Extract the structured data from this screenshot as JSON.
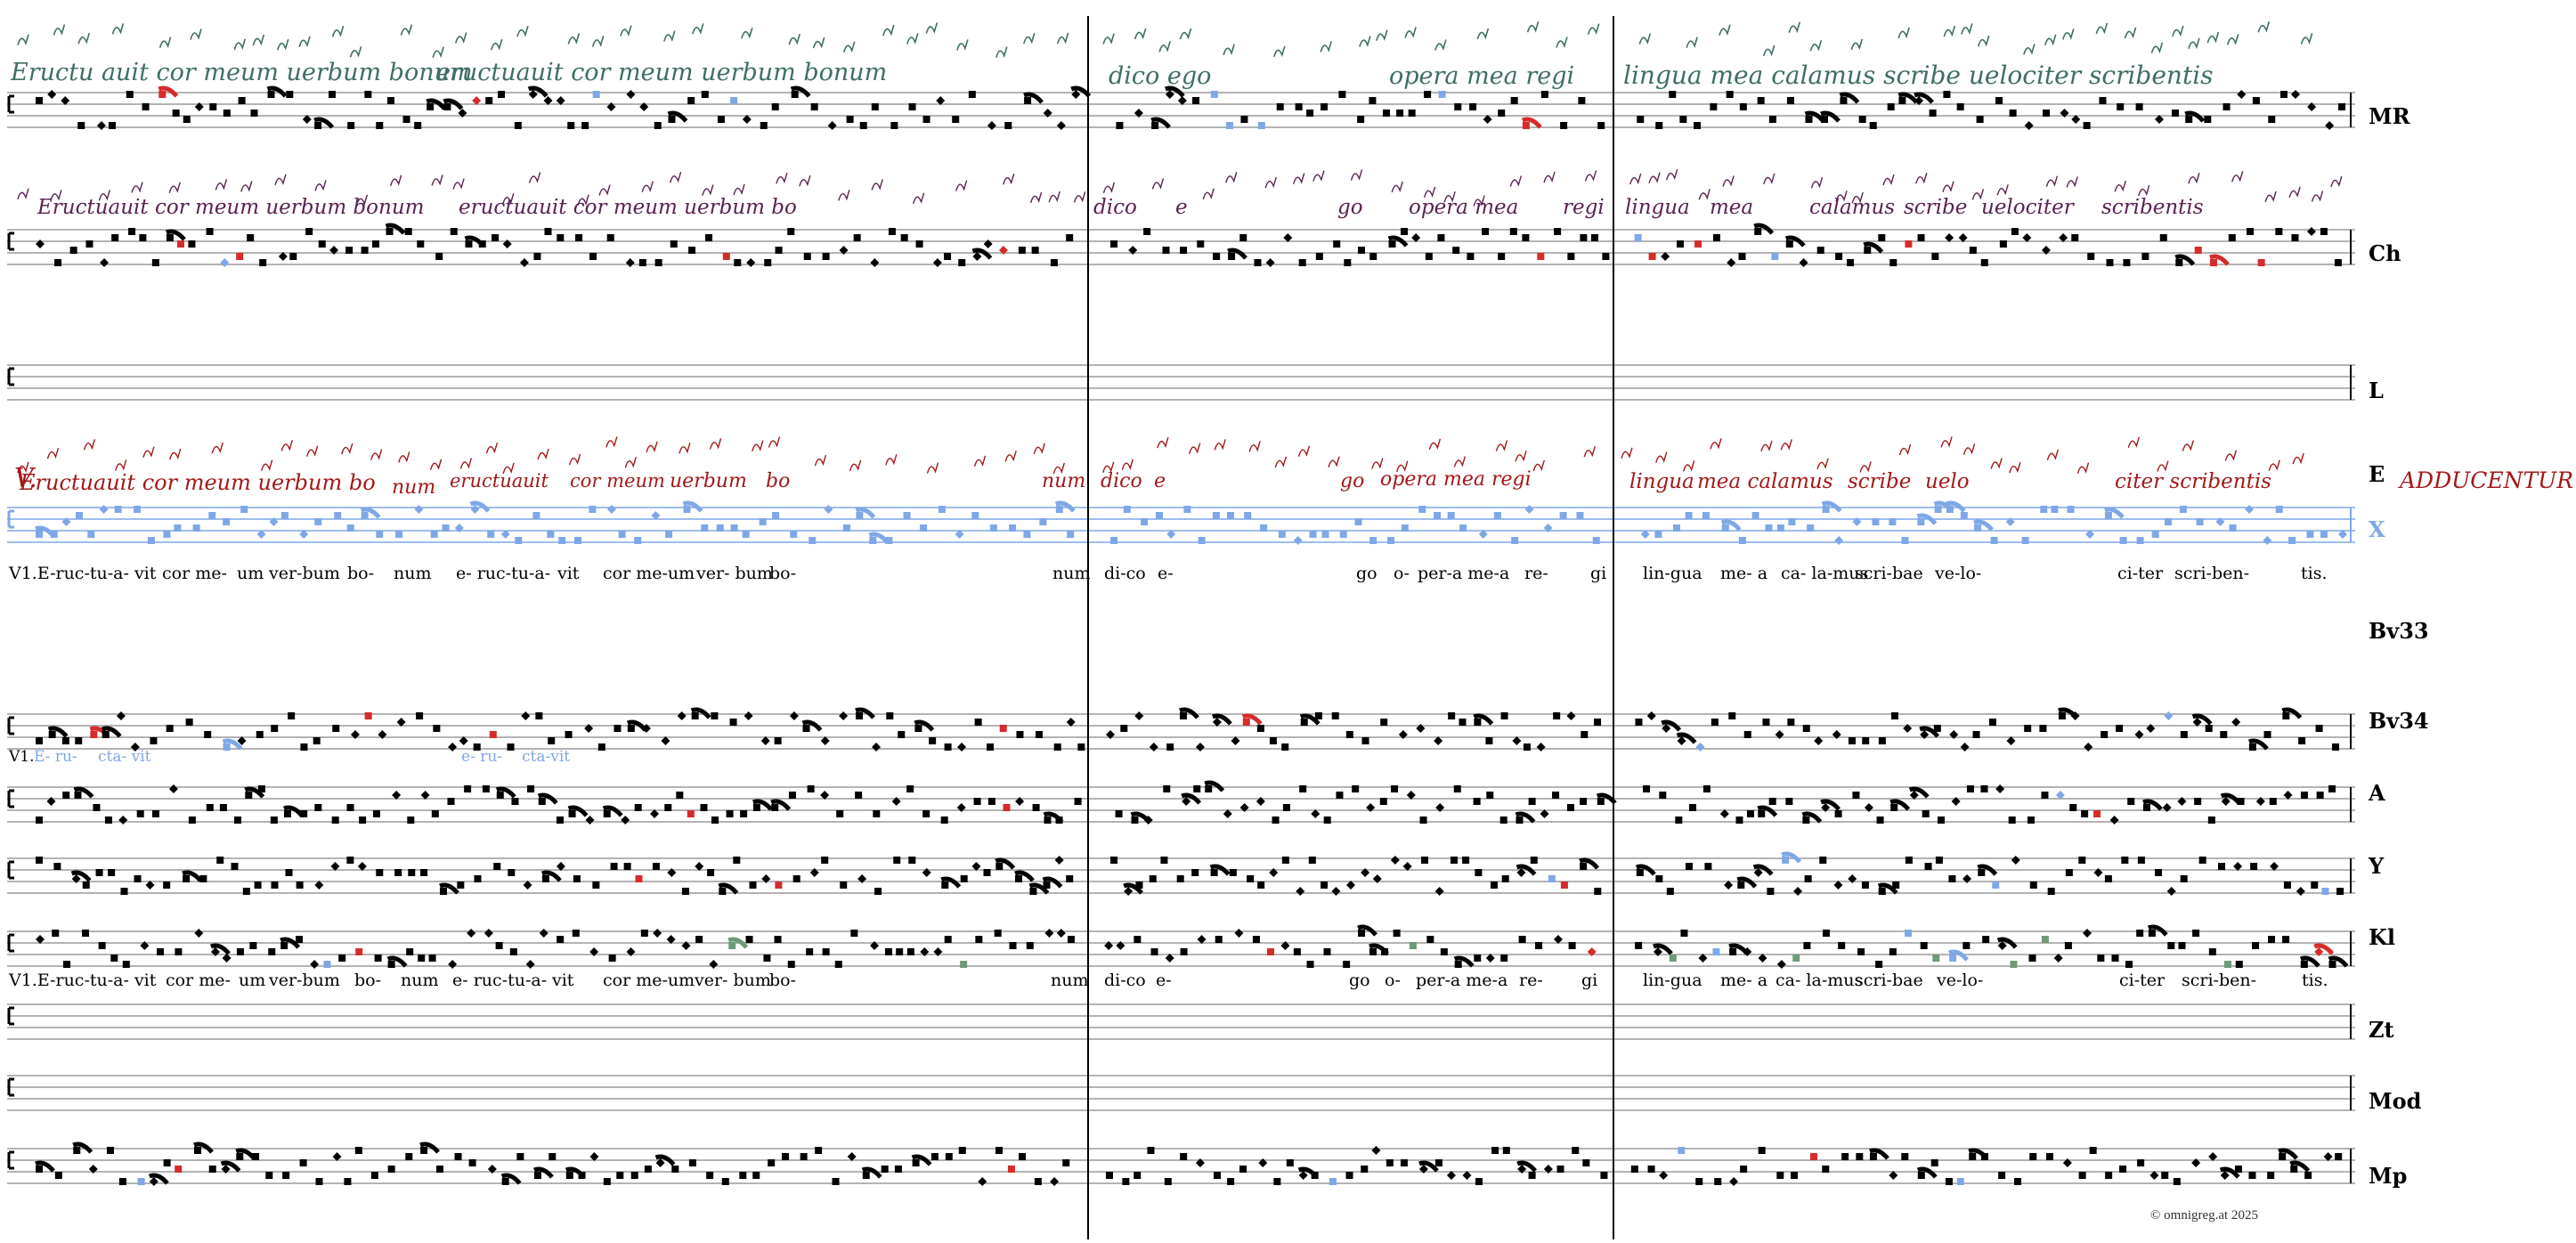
{
  "manuscripts": [
    "MR",
    "Ch",
    "L",
    "E",
    "X",
    "Bv33",
    "Bv34",
    "A",
    "Y",
    "Kl",
    "Zt",
    "Mod",
    "Mp"
  ],
  "colors": {
    "ink": "#000000",
    "blue": "#7fa7e8",
    "red": "#d62b2b",
    "green": "#6f9a78",
    "teal": "#3f6e66",
    "purple": "#5a2250",
    "darkred": "#a31818",
    "staff": "#9a9a9a"
  },
  "lyrics_line_1": [
    "V1.E-ruc-tu-a- vit",
    "cor me-",
    "um",
    "ver-bum",
    "bo-",
    "num",
    "e- ruc-tu-a-",
    "vit",
    "cor me-um",
    "ver- bum",
    "bo-",
    "num",
    "di-co",
    "e-",
    "go",
    "o-",
    "per-a me-a",
    "re-",
    "gi",
    "lin-gua",
    "me- a",
    "ca- la-mus",
    "scri-bae",
    "ve-lo-",
    "ci-ter",
    "scri-ben-",
    "tis."
  ],
  "lyrics_line_2": [
    "V1.E-ruc-tu-a- vit",
    "cor me-",
    "um",
    "ver-bum",
    "bo-",
    "num",
    "e- ruc-tu-a-",
    "vit",
    "cor me-um",
    "ver- bum",
    "bo-",
    "num",
    "di-co",
    "e-",
    "go",
    "o-",
    "per-a me-a",
    "re-",
    "gi",
    "lin-gua",
    "me- a",
    "ca- la-mus",
    "scri-bae",
    "ve-lo-",
    "ci-ter",
    "scri-ben-",
    "tis."
  ],
  "variant_lyrics_bv34": [
    "V1.",
    "E- ru-",
    "cta- vit",
    "e- ru-",
    "cta-vit"
  ],
  "manuscript_texts": {
    "MR": [
      "Eructu auit cor meum uerbum bonum",
      "eructuauit cor meum uerbum bonum",
      "dico ego",
      "opera mea regi",
      "lingua mea calamus scribe uelociter scribentis"
    ],
    "Ch": [
      "Eructuauit cor meum uerbum bonum",
      "eructuauit cor meum uerbum bo",
      "dico",
      "e",
      "go",
      "opera mea",
      "regi",
      "lingua",
      "mea",
      "calamus",
      "scribe",
      "uelociter",
      "scribentis"
    ],
    "E": [
      "V.",
      "Eructuauit cor meum uerbum bo",
      "num",
      "eructuauit",
      "cor meum",
      "uerbum",
      "bo",
      "num",
      "dico",
      "e",
      "go",
      "opera mea regi",
      "lingua",
      "mea calamus",
      "scribe",
      "uelo",
      "citer scribentis",
      "ADDUCENTUR"
    ]
  },
  "copyright": "©  omnigreg.at    2025"
}
